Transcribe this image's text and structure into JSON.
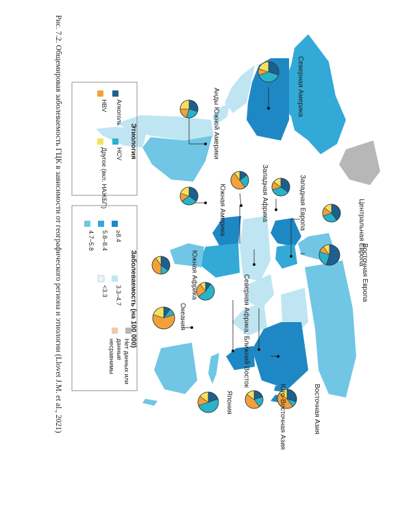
{
  "caption": "Рис. 7.2. Общемировая заболеваемость ГЦК в зависимости от географического региона и этиологии (Llovet J.M. et al., 2021)",
  "colors": {
    "alcohol": "#1d5f8e",
    "hcv": "#29b3c8",
    "hbv": "#f2a13a",
    "other": "#f6e25a",
    "inc_ge84": "#1e88c4",
    "inc_58_84": "#33a9d7",
    "inc_47_58": "#70c6e4",
    "inc_33_47": "#bfe5f2",
    "inc_lt33": "#e8f5fa",
    "no_data": "#b7b7b7",
    "not_comparable": "#f3c9a8"
  },
  "legend_etiology": {
    "title": "Этиология",
    "items": [
      {
        "label": "Алкоголь",
        "color_key": "alcohol"
      },
      {
        "label": "HCV",
        "color_key": "hcv"
      },
      {
        "label": "HBV",
        "color_key": "hbv"
      },
      {
        "label": "Другое (вкл. НАЖБП)",
        "color_key": "other"
      }
    ]
  },
  "legend_incidence": {
    "title": "Заболеваемость (на 100 000)",
    "items": [
      {
        "label": "≥8.4",
        "color_key": "inc_ge84"
      },
      {
        "label": "5.8–8.4",
        "color_key": "inc_58_84"
      },
      {
        "label": "4.7–5.8",
        "color_key": "inc_47_58"
      },
      {
        "label": "3.3–4.7",
        "color_key": "inc_33_47"
      },
      {
        "label": "<3.3",
        "color_key": "inc_lt33"
      },
      {
        "label": "Нет данных или данные несравнимы",
        "color_key": "no_data"
      }
    ]
  },
  "regions": [
    {
      "id": "north-america",
      "label": "Северная Америка",
      "shares": [
        0.3,
        0.4,
        0.1,
        0.2
      ]
    },
    {
      "id": "andean-latin-america",
      "label": "Анды Южной Америки",
      "shares": [
        0.3,
        0.25,
        0.2,
        0.25
      ]
    },
    {
      "id": "south-america",
      "label": "Южная Америка",
      "shares": [
        0.35,
        0.3,
        0.15,
        0.2
      ]
    },
    {
      "id": "western-africa",
      "label": "Западная Африка",
      "shares": [
        0.15,
        0.25,
        0.5,
        0.1
      ]
    },
    {
      "id": "western-europe",
      "label": "Западная Европа",
      "shares": [
        0.35,
        0.35,
        0.15,
        0.15
      ]
    },
    {
      "id": "central-europe",
      "label": "Центральная Европа",
      "shares": [
        0.4,
        0.3,
        0.15,
        0.15
      ]
    },
    {
      "id": "eastern-europe",
      "label": "Восточная Европа",
      "shares": [
        0.55,
        0.25,
        0.1,
        0.1
      ]
    },
    {
      "id": "southern-africa",
      "label": "Южная Африка",
      "shares": [
        0.35,
        0.15,
        0.4,
        0.1
      ]
    },
    {
      "id": "north-africa-middle-east",
      "label": "Северная Африка, Ближний Восток",
      "shares": [
        0.1,
        0.55,
        0.25,
        0.1
      ]
    },
    {
      "id": "oceania",
      "label": "Океания",
      "shares": [
        0.1,
        0.1,
        0.6,
        0.2
      ]
    },
    {
      "id": "east-asia",
      "label": "Восточная Азия",
      "shares": [
        0.3,
        0.1,
        0.45,
        0.15
      ]
    },
    {
      "id": "southeast-asia",
      "label": "Юго-Восточная Азия",
      "shares": [
        0.2,
        0.2,
        0.45,
        0.15
      ]
    },
    {
      "id": "japan",
      "label": "Япония",
      "shares": [
        0.2,
        0.5,
        0.15,
        0.15
      ]
    }
  ]
}
